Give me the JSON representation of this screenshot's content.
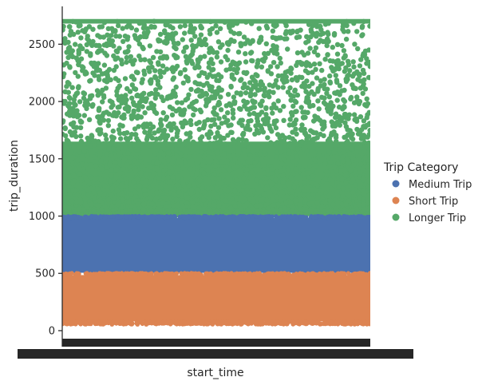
{
  "chart_data": {
    "type": "scatter",
    "title": "",
    "xlabel": "start_time",
    "ylabel": "trip_duration",
    "ylim": [
      -70,
      2830
    ],
    "y_ticks": [
      0,
      500,
      1000,
      1500,
      2000,
      2500
    ],
    "x_ticks": "dense, overlapping (unreadable)",
    "grid": false,
    "legend": {
      "title": "Trip Category",
      "placement": "right",
      "entries": [
        "Medium Trip",
        "Short Trip",
        "Longer Trip"
      ]
    },
    "series": [
      {
        "name": "Medium Trip",
        "color": "#4c72b0",
        "y_range": [
          500,
          1000
        ],
        "distribution": "dense band"
      },
      {
        "name": "Short Trip",
        "color": "#dd8452",
        "y_range": [
          60,
          500
        ],
        "distribution": "dense band"
      },
      {
        "name": "Longer Trip",
        "color": "#55a868",
        "y_range": [
          1000,
          2700
        ],
        "distribution": "dense below ~1800, sparse above, cap line at ~2700"
      }
    ]
  }
}
